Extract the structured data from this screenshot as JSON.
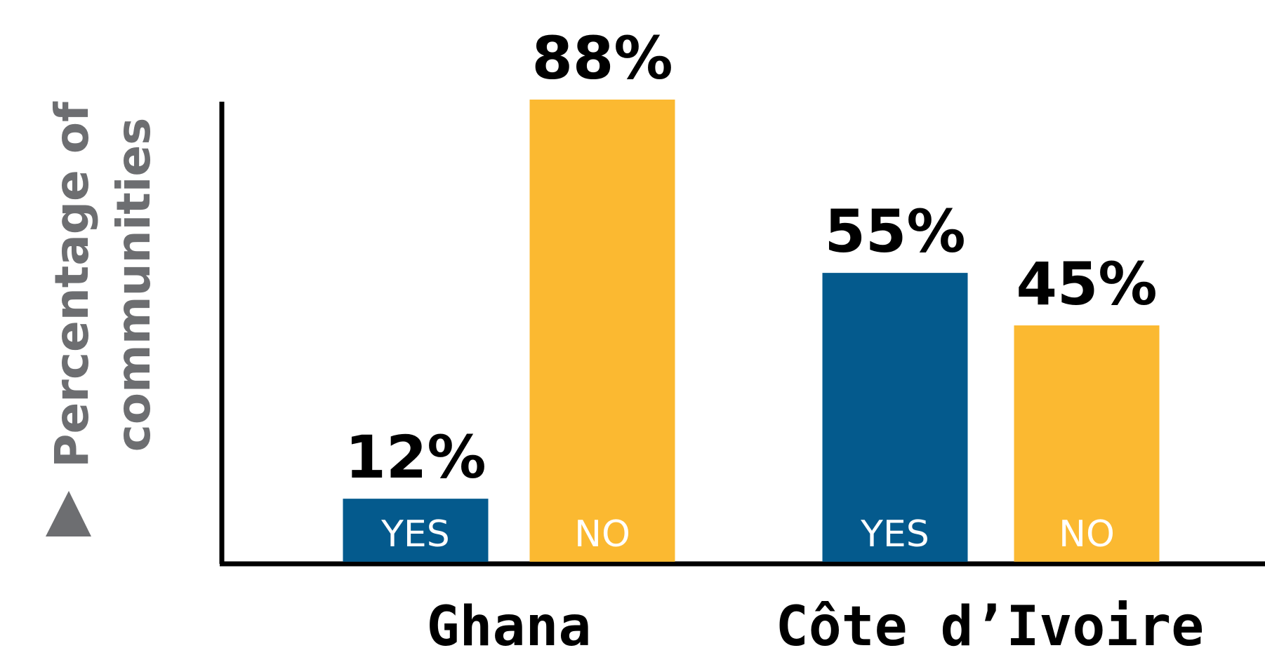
{
  "chart_data": {
    "type": "bar",
    "ylabel_lines": [
      "Percentage of",
      "communities"
    ],
    "categories": [
      "Ghana",
      "Côte d’Ivoire"
    ],
    "series": [
      {
        "name": "YES",
        "values": [
          12,
          55
        ]
      },
      {
        "name": "NO",
        "values": [
          88,
          45
        ]
      }
    ],
    "value_labels": [
      [
        "12%",
        "88%"
      ],
      [
        "55%",
        "45%"
      ]
    ],
    "ylim": [
      0,
      88
    ],
    "grid": false,
    "legend": "none"
  },
  "colors": {
    "yes": "#045a8d",
    "no": "#fbb931",
    "axis": "#000000",
    "ylabel": "#6d6e71"
  }
}
